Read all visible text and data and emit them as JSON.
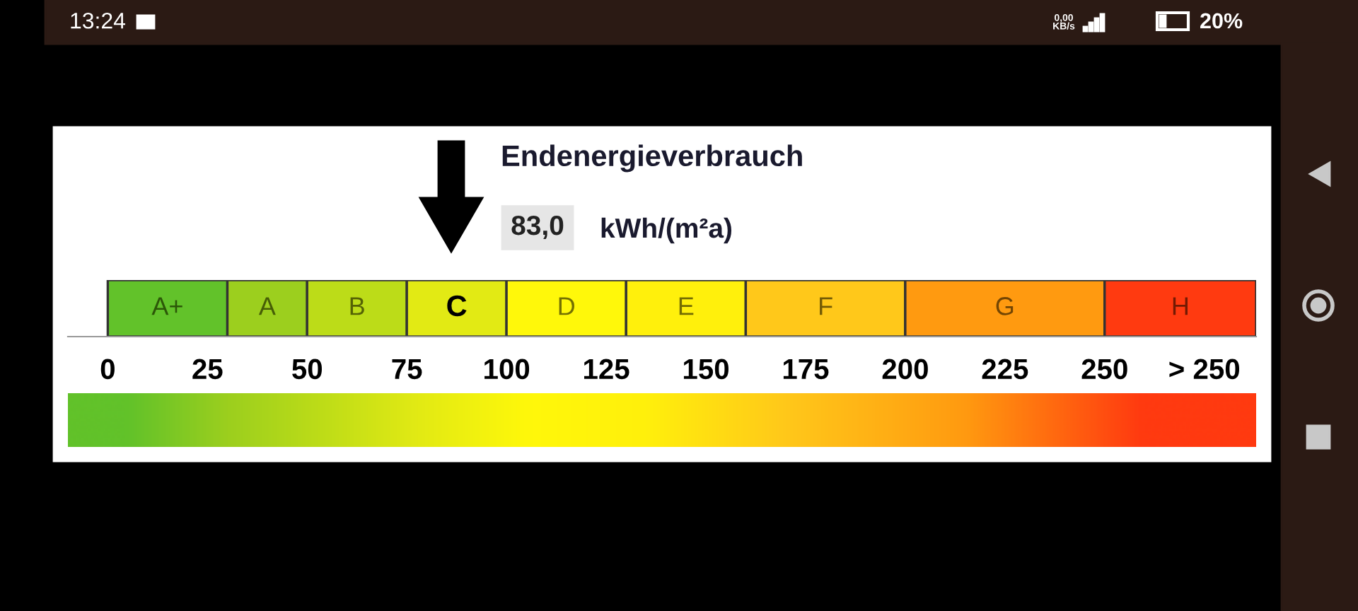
{
  "chart_data": {
    "type": "bar",
    "orientation": "horizontal",
    "stacked": true,
    "title": "Endenergieverbrauch",
    "categories": [
      null
    ],
    "series": [
      {
        "name": "A+",
        "color": "#62c22a",
        "values": [
          30
        ]
      },
      {
        "name": "A",
        "color": "#9ccf1e",
        "values": [
          20
        ]
      },
      {
        "name": "B",
        "color": "#bcdc18",
        "values": [
          25
        ]
      },
      {
        "name": "C",
        "color": "#e2ea14",
        "values": [
          25
        ]
      },
      {
        "name": "D",
        "color": "#fff80a",
        "values": [
          30
        ]
      },
      {
        "name": "E",
        "color": "#fff00c",
        "values": [
          30
        ]
      },
      {
        "name": "F",
        "color": "#ffc81a",
        "values": [
          40
        ]
      },
      {
        "name": "G",
        "color": "#ff9a10",
        "values": [
          50
        ]
      },
      {
        "name": "H",
        "color": "#ff3a10",
        "values": [
          38
        ]
      }
    ],
    "xlim": [
      -10,
      288
    ],
    "xticks": [
      0,
      25,
      50,
      75,
      100,
      125,
      150,
      175,
      200,
      225,
      250,
      {
        "value": 275,
        "label": "> 250"
      }
    ],
    "annotations": [
      "kWh/(m²a)",
      "13:24",
      "0,00 KB/s",
      "20%",
      "83,0"
    ]
  }
}
